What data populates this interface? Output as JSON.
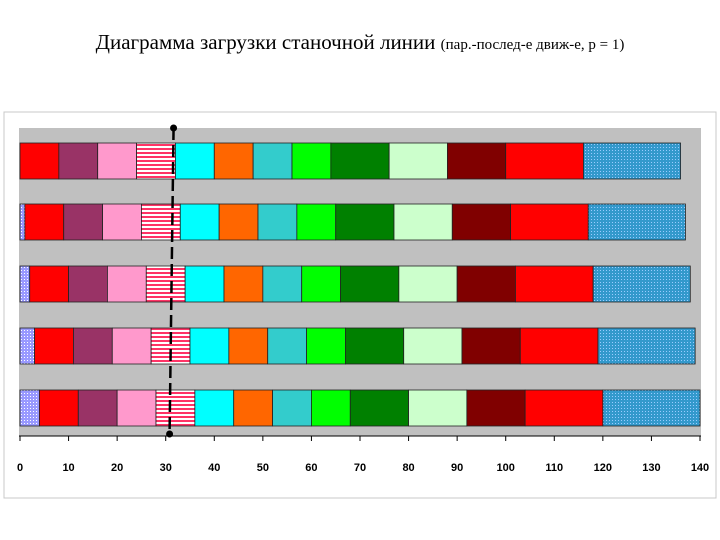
{
  "title": {
    "main": "Диаграмма загрузки станочной линии",
    "sub": "(пар.-послед-е движ-е, р = 1)"
  },
  "chart_data": {
    "type": "bar",
    "orientation": "horizontal",
    "stacked": true,
    "xlim": [
      0,
      140
    ],
    "x_ticks": [
      "0",
      "10",
      "20",
      "30",
      "40",
      "50",
      "60",
      "70",
      "80",
      "90",
      "100",
      "110",
      "120",
      "130",
      "140"
    ],
    "grid": false,
    "plot_background": "#c0c0c0",
    "marker_line_x": 31,
    "rows": [
      {
        "segments": [
          {
            "start": 0,
            "end": 8,
            "color": "#ff0000"
          },
          {
            "start": 8,
            "end": 16,
            "color": "#993366"
          },
          {
            "start": 16,
            "end": 24,
            "color": "#ff99cc"
          },
          {
            "start": 24,
            "end": 32,
            "color": "#ff3366",
            "pattern": "hstripes"
          },
          {
            "start": 32,
            "end": 40,
            "color": "#00ffff"
          },
          {
            "start": 40,
            "end": 48,
            "color": "#ff6600"
          },
          {
            "start": 48,
            "end": 56,
            "color": "#33cccc"
          },
          {
            "start": 56,
            "end": 64,
            "color": "#00ff00"
          },
          {
            "start": 64,
            "end": 76,
            "color": "#008000"
          },
          {
            "start": 76,
            "end": 88,
            "color": "#ccffcc"
          },
          {
            "start": 88,
            "end": 100,
            "color": "#800000"
          },
          {
            "start": 100,
            "end": 116,
            "color": "#ff0000"
          },
          {
            "start": 116,
            "end": 136,
            "color": "#3399cc",
            "pattern": "dots"
          }
        ]
      },
      {
        "segments": [
          {
            "start": 0,
            "end": 1,
            "color": "#9999ff",
            "pattern": "dots"
          },
          {
            "start": 1,
            "end": 9,
            "color": "#ff0000"
          },
          {
            "start": 9,
            "end": 17,
            "color": "#993366"
          },
          {
            "start": 17,
            "end": 25,
            "color": "#ff99cc"
          },
          {
            "start": 25,
            "end": 33,
            "color": "#ff3366",
            "pattern": "hstripes"
          },
          {
            "start": 33,
            "end": 41,
            "color": "#00ffff"
          },
          {
            "start": 41,
            "end": 49,
            "color": "#ff6600"
          },
          {
            "start": 49,
            "end": 57,
            "color": "#33cccc"
          },
          {
            "start": 57,
            "end": 65,
            "color": "#00ff00"
          },
          {
            "start": 65,
            "end": 77,
            "color": "#008000"
          },
          {
            "start": 77,
            "end": 89,
            "color": "#ccffcc"
          },
          {
            "start": 89,
            "end": 101,
            "color": "#800000"
          },
          {
            "start": 101,
            "end": 117,
            "color": "#ff0000"
          },
          {
            "start": 117,
            "end": 137,
            "color": "#3399cc",
            "pattern": "dots"
          }
        ]
      },
      {
        "segments": [
          {
            "start": 0,
            "end": 2,
            "color": "#9999ff",
            "pattern": "dots"
          },
          {
            "start": 2,
            "end": 10,
            "color": "#ff0000"
          },
          {
            "start": 10,
            "end": 18,
            "color": "#993366"
          },
          {
            "start": 18,
            "end": 26,
            "color": "#ff99cc"
          },
          {
            "start": 26,
            "end": 34,
            "color": "#ff3366",
            "pattern": "hstripes"
          },
          {
            "start": 34,
            "end": 42,
            "color": "#00ffff"
          },
          {
            "start": 42,
            "end": 50,
            "color": "#ff6600"
          },
          {
            "start": 50,
            "end": 58,
            "color": "#33cccc"
          },
          {
            "start": 58,
            "end": 66,
            "color": "#00ff00"
          },
          {
            "start": 66,
            "end": 78,
            "color": "#008000"
          },
          {
            "start": 78,
            "end": 90,
            "color": "#ccffcc"
          },
          {
            "start": 90,
            "end": 102,
            "color": "#800000"
          },
          {
            "start": 102,
            "end": 118,
            "color": "#ff0000"
          },
          {
            "start": 118,
            "end": 138,
            "color": "#3399cc",
            "pattern": "dots"
          }
        ]
      },
      {
        "segments": [
          {
            "start": 0,
            "end": 3,
            "color": "#9999ff",
            "pattern": "dots"
          },
          {
            "start": 3,
            "end": 11,
            "color": "#ff0000"
          },
          {
            "start": 11,
            "end": 19,
            "color": "#993366"
          },
          {
            "start": 19,
            "end": 27,
            "color": "#ff99cc"
          },
          {
            "start": 27,
            "end": 35,
            "color": "#ff3366",
            "pattern": "hstripes"
          },
          {
            "start": 35,
            "end": 43,
            "color": "#00ffff"
          },
          {
            "start": 43,
            "end": 51,
            "color": "#ff6600"
          },
          {
            "start": 51,
            "end": 59,
            "color": "#33cccc"
          },
          {
            "start": 59,
            "end": 67,
            "color": "#00ff00"
          },
          {
            "start": 67,
            "end": 79,
            "color": "#008000"
          },
          {
            "start": 79,
            "end": 91,
            "color": "#ccffcc"
          },
          {
            "start": 91,
            "end": 103,
            "color": "#800000"
          },
          {
            "start": 103,
            "end": 119,
            "color": "#ff0000"
          },
          {
            "start": 119,
            "end": 139,
            "color": "#3399cc",
            "pattern": "dots"
          }
        ]
      },
      {
        "segments": [
          {
            "start": 0,
            "end": 4,
            "color": "#9999ff",
            "pattern": "dots"
          },
          {
            "start": 4,
            "end": 12,
            "color": "#ff0000"
          },
          {
            "start": 12,
            "end": 20,
            "color": "#993366"
          },
          {
            "start": 20,
            "end": 28,
            "color": "#ff99cc"
          },
          {
            "start": 28,
            "end": 36,
            "color": "#ff3366",
            "pattern": "hstripes"
          },
          {
            "start": 36,
            "end": 44,
            "color": "#00ffff"
          },
          {
            "start": 44,
            "end": 52,
            "color": "#ff6600"
          },
          {
            "start": 52,
            "end": 60,
            "color": "#33cccc"
          },
          {
            "start": 60,
            "end": 68,
            "color": "#00ff00"
          },
          {
            "start": 68,
            "end": 80,
            "color": "#008000"
          },
          {
            "start": 80,
            "end": 92,
            "color": "#ccffcc"
          },
          {
            "start": 92,
            "end": 104,
            "color": "#800000"
          },
          {
            "start": 104,
            "end": 120,
            "color": "#ff0000"
          },
          {
            "start": 120,
            "end": 140,
            "color": "#3399cc",
            "pattern": "dots"
          }
        ]
      }
    ]
  }
}
